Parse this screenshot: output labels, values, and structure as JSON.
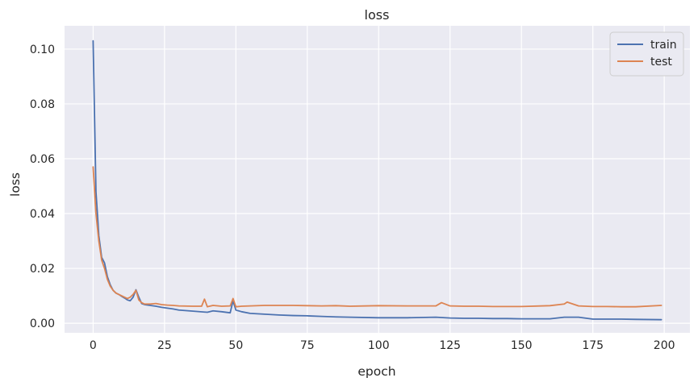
{
  "chart_data": {
    "type": "line",
    "title": "loss",
    "xlabel": "epoch",
    "ylabel": "loss",
    "xlim": [
      -10,
      209
    ],
    "ylim": [
      -0.0035,
      0.1085
    ],
    "xticks": [
      0,
      25,
      50,
      75,
      100,
      125,
      150,
      175,
      200
    ],
    "xtick_labels": [
      "0",
      "25",
      "50",
      "75",
      "100",
      "125",
      "150",
      "175",
      "200"
    ],
    "yticks": [
      0.0,
      0.02,
      0.04,
      0.06,
      0.08,
      0.1
    ],
    "ytick_labels": [
      "0.00",
      "0.02",
      "0.04",
      "0.06",
      "0.08",
      "0.10"
    ],
    "grid": true,
    "legend_position": "top-right",
    "series": [
      {
        "name": "train",
        "color": "#4c72b0",
        "x": [
          0,
          1,
          2,
          3,
          4,
          5,
          6,
          7,
          8,
          9,
          10,
          11,
          12,
          13,
          14,
          15,
          16,
          17,
          18,
          20,
          22,
          24,
          26,
          28,
          30,
          35,
          40,
          42,
          45,
          48,
          49,
          50,
          52,
          55,
          60,
          65,
          70,
          75,
          80,
          85,
          90,
          100,
          110,
          120,
          125,
          130,
          135,
          140,
          145,
          150,
          160,
          165,
          170,
          175,
          180,
          185,
          190,
          199
        ],
        "y": [
          0.103,
          0.048,
          0.032,
          0.024,
          0.022,
          0.017,
          0.014,
          0.012,
          0.011,
          0.0105,
          0.0098,
          0.0092,
          0.0085,
          0.0082,
          0.0095,
          0.0122,
          0.0095,
          0.0072,
          0.0068,
          0.0065,
          0.0062,
          0.0058,
          0.0055,
          0.0052,
          0.0048,
          0.0044,
          0.004,
          0.0045,
          0.0042,
          0.0038,
          0.0082,
          0.0048,
          0.0042,
          0.0036,
          0.0033,
          0.003,
          0.0028,
          0.0027,
          0.0025,
          0.0023,
          0.0022,
          0.002,
          0.002,
          0.0022,
          0.0019,
          0.0018,
          0.0018,
          0.0017,
          0.0017,
          0.0016,
          0.0016,
          0.0022,
          0.0022,
          0.0015,
          0.0015,
          0.0015,
          0.0014,
          0.0013
        ]
      },
      {
        "name": "test",
        "color": "#dd8452",
        "x": [
          0,
          1,
          2,
          3,
          4,
          5,
          6,
          7,
          8,
          9,
          10,
          11,
          12,
          13,
          14,
          15,
          16,
          17,
          18,
          20,
          22,
          24,
          26,
          28,
          30,
          35,
          38,
          39,
          40,
          42,
          45,
          48,
          49,
          50,
          52,
          55,
          60,
          65,
          70,
          75,
          80,
          85,
          90,
          100,
          110,
          120,
          122,
          125,
          130,
          135,
          140,
          145,
          150,
          160,
          165,
          166,
          170,
          175,
          180,
          185,
          190,
          199
        ],
        "y": [
          0.057,
          0.04,
          0.03,
          0.023,
          0.02,
          0.016,
          0.0135,
          0.012,
          0.011,
          0.0105,
          0.01,
          0.0095,
          0.009,
          0.0095,
          0.0105,
          0.012,
          0.0085,
          0.0075,
          0.007,
          0.007,
          0.0072,
          0.0068,
          0.0066,
          0.0065,
          0.0063,
          0.0062,
          0.0062,
          0.0088,
          0.006,
          0.0065,
          0.0062,
          0.0063,
          0.009,
          0.006,
          0.0062,
          0.0063,
          0.0065,
          0.0065,
          0.0065,
          0.0064,
          0.0063,
          0.0064,
          0.0062,
          0.0064,
          0.0063,
          0.0063,
          0.0075,
          0.0063,
          0.0062,
          0.0062,
          0.0061,
          0.0061,
          0.0061,
          0.0064,
          0.007,
          0.0077,
          0.0063,
          0.0061,
          0.0061,
          0.006,
          0.006,
          0.0065
        ]
      }
    ]
  }
}
